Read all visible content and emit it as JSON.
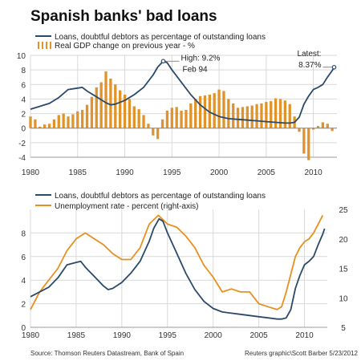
{
  "title": "Spanish banks' bad loans",
  "source": "Source: Thomson Reuters Datastream, Bank of Spain",
  "credit": "Reuters graphic\\Scott Barber 5/23/2012",
  "colors": {
    "loans": "#2b4a6a",
    "gdp": "#e0932a",
    "unemployment": "#e8901e",
    "grid": "#d9d9d9",
    "zero_line": "#888888"
  },
  "chart_data": [
    {
      "type": "bar",
      "title": "Spanish banks' bad loans",
      "legend": [
        "Loans, doubtful debtors as percentage of outstanding loans",
        "Real GDP change on previous year - %"
      ],
      "legend_position": "top-left",
      "xlim": [
        1980,
        2012.5
      ],
      "ylim": [
        -4,
        10
      ],
      "x_ticks": [
        1980,
        1985,
        1990,
        1995,
        2000,
        2005,
        2010
      ],
      "y_ticks": [
        -4,
        -2,
        0,
        2,
        4,
        6,
        8,
        10
      ],
      "grid": true,
      "series": [
        {
          "name": "Loans, doubtful debtors as percentage of outstanding loans",
          "kind": "line",
          "x": [
            1980,
            1981,
            1982,
            1983,
            1984,
            1985,
            1985.5,
            1986,
            1987,
            1988,
            1988.5,
            1989,
            1990,
            1991,
            1992,
            1993,
            1993.5,
            1994.08,
            1994.5,
            1995,
            1996,
            1997,
            1998,
            1999,
            2000,
            2001,
            2002,
            2003,
            2004,
            2005,
            2006,
            2007,
            2007.5,
            2008,
            2008.5,
            2009,
            2009.5,
            2010,
            2010.5,
            2011,
            2011.5,
            2012,
            2012.2
          ],
          "y": [
            2.6,
            3.0,
            3.4,
            4.2,
            5.3,
            5.5,
            5.6,
            5.1,
            4.3,
            3.5,
            3.2,
            3.3,
            3.8,
            4.6,
            5.6,
            7.3,
            8.4,
            9.2,
            9.0,
            8.0,
            6.3,
            4.6,
            3.2,
            2.2,
            1.6,
            1.3,
            1.2,
            1.1,
            1.0,
            0.9,
            0.8,
            0.7,
            0.7,
            0.8,
            1.5,
            3.3,
            4.4,
            5.3,
            5.6,
            6.0,
            7.0,
            7.9,
            8.37
          ]
        },
        {
          "name": "Real GDP change on previous year - %",
          "kind": "bar",
          "x": [
            1980,
            1980.5,
            1981,
            1981.5,
            1982,
            1982.5,
            1983,
            1983.5,
            1984,
            1984.5,
            1985,
            1985.5,
            1986,
            1986.5,
            1987,
            1987.5,
            1988,
            1988.5,
            1989,
            1989.5,
            1990,
            1990.5,
            1991,
            1991.5,
            1992,
            1992.5,
            1993,
            1993.5,
            1994,
            1994.5,
            1995,
            1995.5,
            1996,
            1996.5,
            1997,
            1997.5,
            1998,
            1998.5,
            1999,
            1999.5,
            2000,
            2000.5,
            2001,
            2001.5,
            2002,
            2002.5,
            2003,
            2003.5,
            2004,
            2004.5,
            2005,
            2005.5,
            2006,
            2006.5,
            2007,
            2007.5,
            2008,
            2008.5,
            2009,
            2009.5,
            2010,
            2010.5,
            2011,
            2011.5,
            2012
          ],
          "y": [
            1.6,
            1.2,
            0.2,
            0.5,
            0.6,
            1.2,
            1.8,
            2.0,
            1.6,
            1.9,
            2.3,
            2.5,
            3.2,
            4.3,
            5.6,
            6.3,
            7.8,
            6.8,
            6.0,
            5.2,
            4.6,
            4.0,
            3.0,
            2.6,
            1.8,
            0.6,
            -1.0,
            -1.5,
            1.2,
            2.4,
            2.8,
            2.9,
            2.4,
            2.5,
            3.4,
            4.0,
            4.4,
            4.5,
            4.6,
            4.8,
            5.3,
            5.1,
            4.0,
            3.4,
            2.8,
            2.9,
            3.0,
            3.1,
            3.3,
            3.4,
            3.6,
            3.7,
            4.1,
            4.0,
            3.8,
            3.3,
            1.6,
            -0.5,
            -3.5,
            -4.4,
            -0.2,
            0.3,
            0.8,
            0.6,
            -0.4
          ]
        }
      ],
      "annotations": [
        {
          "text_lines": [
            "High: 9.2%",
            "Feb 94"
          ],
          "x": 1994.08,
          "y": 9.2
        },
        {
          "text_lines": [
            "Latest:",
            "8.37%"
          ],
          "x": 2012.2,
          "y": 8.37
        }
      ]
    },
    {
      "type": "line",
      "legend": [
        "Loans, doubtful debtors as percentage of outstanding loans",
        "Unemployment rate - percent (right-axis)"
      ],
      "legend_position": "top-left",
      "xlim": [
        1980,
        2012.5
      ],
      "ylim": [
        0,
        10
      ],
      "y2lim": [
        5,
        25
      ],
      "x_ticks": [
        1980,
        1985,
        1990,
        1995,
        2000,
        2005,
        2010
      ],
      "y_ticks": [
        0,
        2,
        4,
        6,
        8
      ],
      "y2_ticks": [
        5,
        10,
        15,
        20,
        25
      ],
      "grid": true,
      "series": [
        {
          "name": "Loans, doubtful debtors as percentage of outstanding loans",
          "axis": "left",
          "x": [
            1980,
            1981,
            1982,
            1983,
            1984,
            1985,
            1985.5,
            1986,
            1987,
            1988,
            1988.5,
            1989,
            1990,
            1991,
            1992,
            1993,
            1993.5,
            1994.08,
            1994.5,
            1995,
            1996,
            1997,
            1998,
            1999,
            2000,
            2001,
            2002,
            2003,
            2004,
            2005,
            2006,
            2007,
            2007.5,
            2008,
            2008.5,
            2009,
            2009.5,
            2010,
            2010.5,
            2011,
            2011.5,
            2012,
            2012.2
          ],
          "y": [
            2.6,
            3.0,
            3.4,
            4.2,
            5.3,
            5.5,
            5.6,
            5.1,
            4.3,
            3.5,
            3.2,
            3.3,
            3.8,
            4.6,
            5.6,
            7.3,
            8.4,
            9.2,
            9.0,
            8.0,
            6.3,
            4.6,
            3.2,
            2.2,
            1.6,
            1.3,
            1.2,
            1.1,
            1.0,
            0.9,
            0.8,
            0.7,
            0.7,
            0.8,
            1.5,
            3.3,
            4.4,
            5.3,
            5.6,
            6.0,
            7.0,
            7.9,
            8.37
          ]
        },
        {
          "name": "Unemployment rate - percent (right-axis)",
          "axis": "right",
          "x": [
            1980,
            1981,
            1982,
            1983,
            1984,
            1985,
            1986,
            1987,
            1988,
            1989,
            1990,
            1991,
            1992,
            1993,
            1994,
            1995,
            1996,
            1997,
            1998,
            1999,
            2000,
            2001,
            2002,
            2003,
            2004,
            2005,
            2006,
            2007,
            2007.5,
            2008,
            2008.5,
            2009,
            2009.5,
            2010,
            2010.5,
            2011,
            2011.5,
            2012
          ],
          "y": [
            8,
            11,
            13,
            15,
            18,
            20,
            21,
            20,
            19,
            17.5,
            16.5,
            16.5,
            18.5,
            22.5,
            24,
            22.5,
            22,
            20.5,
            18.5,
            15.5,
            13.5,
            11,
            11.5,
            11,
            11,
            9,
            8.5,
            8,
            8.5,
            11,
            14,
            17,
            18.5,
            19.5,
            20,
            21,
            22.5,
            24
          ]
        }
      ]
    }
  ]
}
